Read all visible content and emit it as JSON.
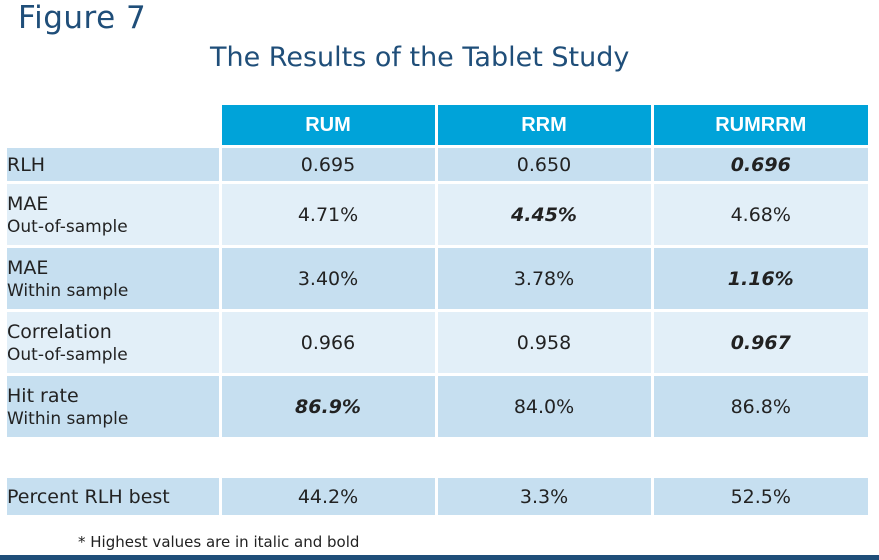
{
  "figure_label": "Figure 7",
  "title": "The Results of the Tablet Study",
  "columns": [
    "RUM",
    "RRM",
    "RUMRRM"
  ],
  "rows": [
    {
      "label": "RLH",
      "sub": "",
      "values": [
        "0.695",
        "0.650",
        "0.696"
      ],
      "best": 2
    },
    {
      "label": "MAE",
      "sub": "Out-of-sample",
      "values": [
        "4.71%",
        "4.45%",
        "4.68%"
      ],
      "best": 1
    },
    {
      "label": "MAE",
      "sub": "Within sample",
      "values": [
        "3.40%",
        "3.78%",
        "1.16%"
      ],
      "best": 2
    },
    {
      "label": "Correlation",
      "sub": "Out-of-sample",
      "values": [
        "0.966",
        "0.958",
        "0.967"
      ],
      "best": 2
    },
    {
      "label": "Hit rate",
      "sub": "Within sample",
      "values": [
        "86.9%",
        "84.0%",
        "86.8%"
      ],
      "best": 0
    }
  ],
  "summary": {
    "label": "Percent RLH best",
    "values": [
      "44.2%",
      "3.3%",
      "52.5%"
    ]
  },
  "footnote": "* Highest values are in italic and bold",
  "colors": {
    "header": "#00a3d9",
    "title": "#1f4e79",
    "row_dark": "#c6dff0",
    "row_light": "#e2eff8"
  }
}
